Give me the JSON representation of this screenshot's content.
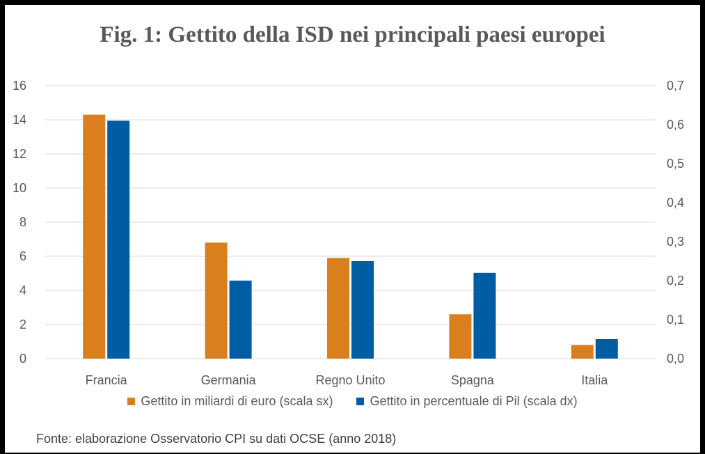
{
  "chart_data": {
    "type": "bar",
    "title": "Fig. 1: Gettito della ISD nei principali paesi europei",
    "categories": [
      "Francia",
      "Germania",
      "Regno Unito",
      "Spagna",
      "Italia"
    ],
    "series": [
      {
        "name": "Gettito in miliardi di euro (scala sx)",
        "axis": "left",
        "color": "#D97F1E",
        "values": [
          14.3,
          6.8,
          5.9,
          2.6,
          0.8
        ]
      },
      {
        "name": "Gettito in percentuale di Pil (scala dx)",
        "axis": "right",
        "color": "#005DA4",
        "values": [
          0.61,
          0.2,
          0.25,
          0.22,
          0.05
        ]
      }
    ],
    "y_left": {
      "min": 0,
      "max": 16,
      "ticks": [
        "0",
        "2",
        "4",
        "6",
        "8",
        "10",
        "12",
        "14",
        "16"
      ]
    },
    "y_right": {
      "min": 0,
      "max": 0.7,
      "ticks": [
        "0,0",
        "0,1",
        "0,2",
        "0,3",
        "0,4",
        "0,5",
        "0,6",
        "0,7"
      ]
    },
    "grid": true,
    "legend_position": "bottom"
  },
  "legend": {
    "item1": "Gettito in miliardi di euro (scala sx)",
    "item2": "Gettito in percentuale di Pil (scala dx)"
  },
  "source": "Fonte: elaborazione Osservatorio CPI su dati OCSE (anno 2018)",
  "colors": {
    "orange": "#D97F1E",
    "blue": "#005DA4",
    "grid": "#D9D9D9",
    "text": "#595959"
  }
}
